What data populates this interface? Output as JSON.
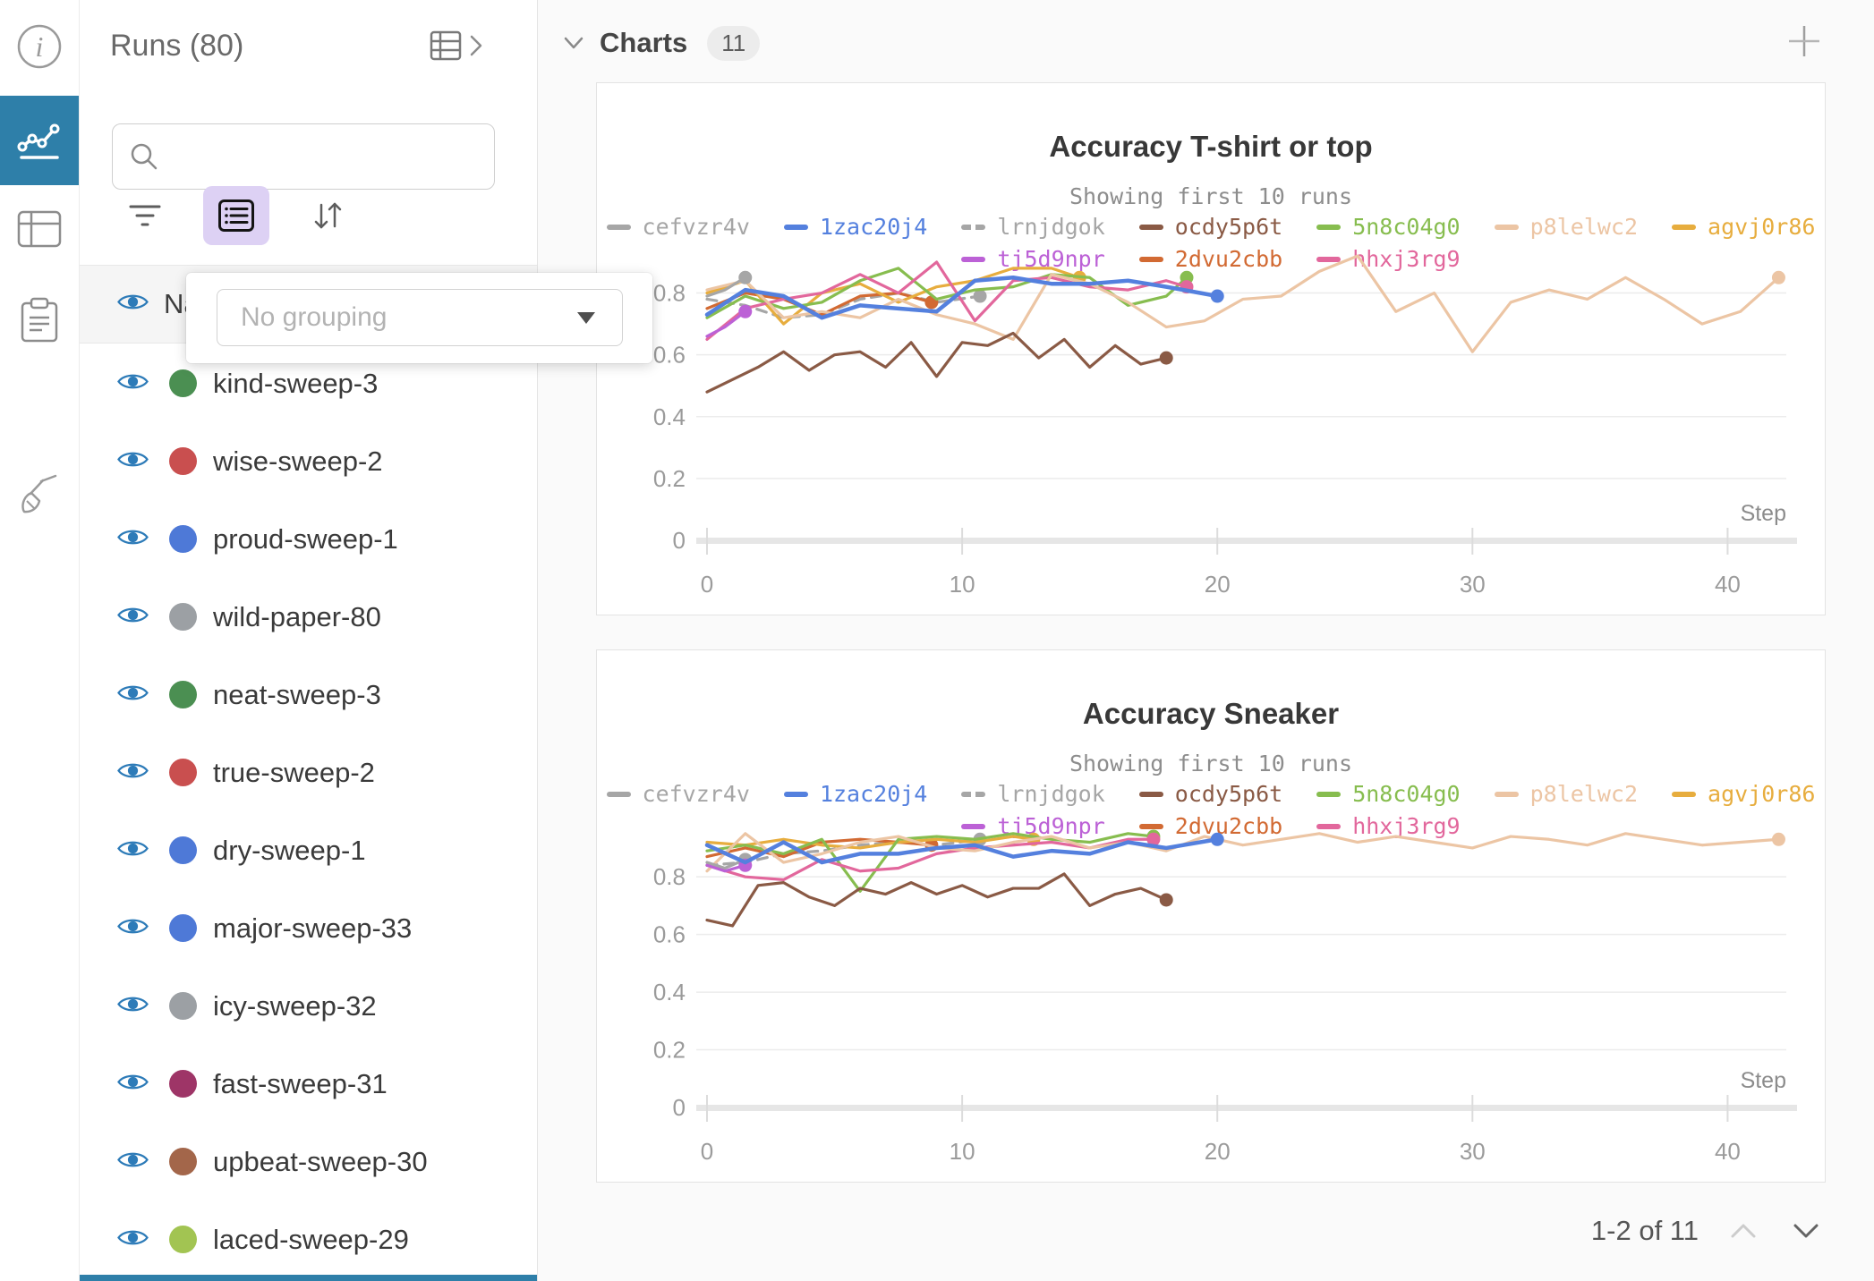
{
  "rail": {
    "items": [
      {
        "icon": "info-icon",
        "active": false
      },
      {
        "icon": "line-chart-icon",
        "active": true
      },
      {
        "icon": "table-icon",
        "active": false
      },
      {
        "icon": "clipboard-icon",
        "active": false
      },
      {
        "icon": "broom-icon",
        "active": false
      }
    ]
  },
  "sidebar": {
    "title": "Runs (80)",
    "search": {
      "placeholder": "",
      "value": ""
    },
    "grouping_popup": {
      "placeholder": "No grouping"
    },
    "header_row": {
      "label": "Name"
    },
    "runs": [
      {
        "name": "kind-sweep-3",
        "color": "#4b8f52",
        "visible": true
      },
      {
        "name": "wise-sweep-2",
        "color": "#c94f4f",
        "visible": true
      },
      {
        "name": "proud-sweep-1",
        "color": "#4e79d7",
        "visible": true
      },
      {
        "name": "wild-paper-80",
        "color": "#9ca0a4",
        "visible": true
      },
      {
        "name": "neat-sweep-3",
        "color": "#4b8f52",
        "visible": true
      },
      {
        "name": "true-sweep-2",
        "color": "#c94f4f",
        "visible": true
      },
      {
        "name": "dry-sweep-1",
        "color": "#4e79d7",
        "visible": true
      },
      {
        "name": "major-sweep-33",
        "color": "#4e79d7",
        "visible": true
      },
      {
        "name": "icy-sweep-32",
        "color": "#9ca0a4",
        "visible": true
      },
      {
        "name": "fast-sweep-31",
        "color": "#9e3567",
        "visible": true
      },
      {
        "name": "upbeat-sweep-30",
        "color": "#a3664a",
        "visible": true
      },
      {
        "name": "laced-sweep-29",
        "color": "#a2c452",
        "visible": true
      }
    ],
    "accent_color": "#2e7fa9",
    "eye_color": "#2d7bb8",
    "group_button_bg": "#ddd1f4"
  },
  "main": {
    "section_title": "Charts",
    "section_count": "11",
    "pagination": {
      "label": "1-2 of 11"
    }
  },
  "chart_data": [
    {
      "type": "line",
      "title": "Accuracy T-shirt or top",
      "subtitle": "Showing first 10 runs",
      "xlabel": "Step",
      "ylabel": "",
      "xlim": [
        0,
        42.3
      ],
      "ylim": [
        0,
        0.9
      ],
      "xticks": [
        0,
        10,
        20,
        30,
        40
      ],
      "yticks": [
        0,
        0.2,
        0.4,
        0.6,
        0.8
      ],
      "grid": true,
      "legend_rows": [
        [
          "cefvzr4v",
          "1zac20j4",
          "lrnjdgok",
          "ocdy5p6t",
          "5n8c04g0",
          "p8lelwc2",
          "agvj0r86"
        ],
        [
          "tj5d9npr",
          "2dvu2cbb",
          "hhxj3rg9"
        ]
      ],
      "series": [
        {
          "name": "lrnjdgok",
          "color": "#a6a6a6",
          "dashed": true,
          "x": [
            0,
            1.5,
            3,
            4.5,
            6,
            7.5,
            9,
            10.7
          ],
          "y": [
            0.78,
            0.76,
            0.72,
            0.73,
            0.78,
            0.8,
            0.77,
            0.79
          ]
        },
        {
          "name": "2dvu2cbb",
          "color": "#d26a33",
          "dashed": false,
          "x": [
            0,
            1.5,
            3,
            4.5,
            6,
            7.5,
            8.8
          ],
          "y": [
            0.75,
            0.8,
            0.78,
            0.73,
            0.79,
            0.8,
            0.77
          ]
        },
        {
          "name": "agvj0r86",
          "color": "#e7ad3e",
          "dashed": false,
          "x": [
            0,
            1.5,
            3,
            4.5,
            6,
            7.5,
            9,
            10.5,
            12,
            13.5,
            14.6
          ],
          "y": [
            0.8,
            0.84,
            0.7,
            0.8,
            0.83,
            0.77,
            0.82,
            0.84,
            0.88,
            0.88,
            0.85
          ]
        },
        {
          "name": "5n8c04g0",
          "color": "#87bd4f",
          "dashed": false,
          "x": [
            0,
            1.5,
            3,
            4.5,
            6,
            7.5,
            9,
            10.5,
            12,
            13.5,
            15,
            16.5,
            18,
            18.8
          ],
          "y": [
            0.72,
            0.79,
            0.75,
            0.77,
            0.84,
            0.88,
            0.78,
            0.81,
            0.82,
            0.86,
            0.85,
            0.76,
            0.79,
            0.85
          ]
        },
        {
          "name": "hhxj3rg9",
          "color": "#e2679c",
          "dashed": false,
          "x": [
            0,
            1.5,
            3,
            4.5,
            6,
            7.5,
            9,
            10.5,
            12,
            13.5,
            15,
            16.5,
            18,
            18.8
          ],
          "y": [
            0.65,
            0.75,
            0.78,
            0.8,
            0.86,
            0.8,
            0.9,
            0.71,
            0.84,
            0.85,
            0.82,
            0.81,
            0.84,
            0.82
          ]
        },
        {
          "name": "p8lelwc2",
          "color": "#ecc5a4",
          "dashed": false,
          "x": [
            0,
            1.5,
            3,
            4.5,
            6,
            7.5,
            9,
            10.5,
            12,
            13.5,
            15,
            16.5,
            18,
            19.5,
            21,
            22.5,
            24,
            25.5,
            27,
            28.5,
            30,
            31.5,
            33,
            34.5,
            36,
            37.5,
            39,
            40.5,
            42
          ],
          "y": [
            0.81,
            0.84,
            0.72,
            0.74,
            0.72,
            0.78,
            0.73,
            0.7,
            0.65,
            0.86,
            0.83,
            0.77,
            0.69,
            0.71,
            0.78,
            0.79,
            0.87,
            0.92,
            0.74,
            0.8,
            0.61,
            0.77,
            0.81,
            0.78,
            0.85,
            0.78,
            0.7,
            0.74,
            0.85
          ]
        },
        {
          "name": "ocdy5p6t",
          "color": "#8a5a45",
          "dashed": false,
          "x": [
            0,
            1,
            2,
            3,
            4,
            5,
            6,
            7,
            8,
            9,
            10,
            11,
            12,
            13,
            14,
            15,
            16,
            17,
            18
          ],
          "y": [
            0.48,
            0.52,
            0.56,
            0.61,
            0.55,
            0.6,
            0.61,
            0.56,
            0.64,
            0.53,
            0.64,
            0.63,
            0.67,
            0.59,
            0.65,
            0.56,
            0.63,
            0.57,
            0.59
          ]
        },
        {
          "name": "cefvzr4v",
          "color": "#a6a6a6",
          "dashed": false,
          "x": [
            0,
            0.7,
            1.5
          ],
          "y": [
            0.79,
            0.81,
            0.85
          ]
        },
        {
          "name": "tj5d9npr",
          "color": "#bc61d6",
          "dashed": false,
          "x": [
            0,
            0.7,
            1.5
          ],
          "y": [
            0.66,
            0.69,
            0.74
          ]
        },
        {
          "name": "1zac20j4",
          "color": "#5480de",
          "dashed": false,
          "emph": true,
          "x": [
            0,
            1.5,
            3,
            4.5,
            6,
            7.5,
            9,
            10.5,
            12,
            13.5,
            15,
            16.5,
            18,
            20
          ],
          "y": [
            0.73,
            0.81,
            0.79,
            0.72,
            0.76,
            0.75,
            0.74,
            0.84,
            0.85,
            0.83,
            0.83,
            0.84,
            0.82,
            0.79
          ]
        }
      ]
    },
    {
      "type": "line",
      "title": "Accuracy Sneaker",
      "subtitle": "Showing first 10 runs",
      "xlabel": "Step",
      "ylabel": "",
      "xlim": [
        0,
        42.3
      ],
      "ylim": [
        0,
        0.965
      ],
      "xticks": [
        0,
        10,
        20,
        30,
        40
      ],
      "yticks": [
        0,
        0.2,
        0.4,
        0.6,
        0.8
      ],
      "grid": true,
      "legend_rows": [
        [
          "cefvzr4v",
          "1zac20j4",
          "lrnjdgok",
          "ocdy5p6t",
          "5n8c04g0",
          "p8lelwc2",
          "agvj0r86"
        ],
        [
          "tj5d9npr",
          "2dvu2cbb",
          "hhxj3rg9"
        ]
      ],
      "series": [
        {
          "name": "lrnjdgok",
          "color": "#a6a6a6",
          "dashed": true,
          "x": [
            0,
            1.5,
            3,
            4.5,
            6,
            7.5,
            9,
            10.7
          ],
          "y": [
            0.84,
            0.85,
            0.88,
            0.89,
            0.91,
            0.92,
            0.91,
            0.93
          ]
        },
        {
          "name": "2dvu2cbb",
          "color": "#d26a33",
          "dashed": false,
          "x": [
            0,
            1.5,
            3,
            4.5,
            6,
            7.5,
            8.8
          ],
          "y": [
            0.87,
            0.9,
            0.87,
            0.92,
            0.93,
            0.92,
            0.91
          ]
        },
        {
          "name": "agvj0r86",
          "color": "#e7ad3e",
          "dashed": false,
          "x": [
            0,
            1.5,
            3,
            4.5,
            6,
            7.5,
            9,
            10.5,
            12,
            12.8
          ],
          "y": [
            0.92,
            0.91,
            0.93,
            0.91,
            0.9,
            0.92,
            0.93,
            0.92,
            0.94,
            0.93
          ]
        },
        {
          "name": "5n8c04g0",
          "color": "#87bd4f",
          "dashed": false,
          "x": [
            0,
            1.5,
            3,
            4.5,
            6,
            7.5,
            9,
            10.5,
            12,
            13.5,
            15,
            16.5,
            17.5
          ],
          "y": [
            0.89,
            0.91,
            0.88,
            0.93,
            0.75,
            0.93,
            0.94,
            0.93,
            0.95,
            0.93,
            0.92,
            0.95,
            0.94
          ]
        },
        {
          "name": "hhxj3rg9",
          "color": "#e2679c",
          "dashed": false,
          "x": [
            0,
            1.5,
            3,
            4.5,
            6,
            7.5,
            9,
            10.5,
            12,
            13.5,
            15,
            16.5,
            17.5
          ],
          "y": [
            0.84,
            0.8,
            0.79,
            0.86,
            0.82,
            0.83,
            0.88,
            0.9,
            0.91,
            0.92,
            0.9,
            0.93,
            0.93
          ]
        },
        {
          "name": "p8lelwc2",
          "color": "#ecc5a4",
          "dashed": false,
          "x": [
            0,
            1.5,
            3,
            4.5,
            6,
            7.5,
            9,
            10.5,
            12,
            13.5,
            15,
            16.5,
            18,
            19.5,
            21,
            22.5,
            24,
            25.5,
            27,
            28.5,
            30,
            31.5,
            33,
            34.5,
            36,
            37.5,
            39,
            40.5,
            42
          ],
          "y": [
            0.82,
            0.95,
            0.85,
            0.88,
            0.92,
            0.94,
            0.9,
            0.89,
            0.92,
            0.94,
            0.9,
            0.92,
            0.89,
            0.94,
            0.91,
            0.93,
            0.95,
            0.92,
            0.94,
            0.92,
            0.9,
            0.94,
            0.93,
            0.91,
            0.95,
            0.93,
            0.91,
            0.92,
            0.93
          ]
        },
        {
          "name": "ocdy5p6t",
          "color": "#8a5a45",
          "dashed": false,
          "x": [
            0,
            1,
            2,
            3,
            4,
            5,
            6,
            7,
            8,
            9,
            10,
            11,
            12,
            13,
            14,
            15,
            16,
            17,
            18
          ],
          "y": [
            0.65,
            0.63,
            0.77,
            0.78,
            0.73,
            0.7,
            0.76,
            0.74,
            0.78,
            0.74,
            0.77,
            0.73,
            0.76,
            0.76,
            0.81,
            0.7,
            0.74,
            0.76,
            0.72
          ]
        },
        {
          "name": "cefvzr4v",
          "color": "#a6a6a6",
          "dashed": false,
          "x": [
            0,
            0.7,
            1.5
          ],
          "y": [
            0.85,
            0.83,
            0.86
          ]
        },
        {
          "name": "tj5d9npr",
          "color": "#bc61d6",
          "dashed": false,
          "x": [
            0,
            0.7,
            1.5
          ],
          "y": [
            0.84,
            0.82,
            0.84
          ]
        },
        {
          "name": "1zac20j4",
          "color": "#5480de",
          "dashed": false,
          "emph": true,
          "x": [
            0,
            1.5,
            3,
            4.5,
            6,
            7.5,
            9,
            10.5,
            12,
            13.5,
            15,
            16.5,
            18,
            20
          ],
          "y": [
            0.91,
            0.85,
            0.92,
            0.85,
            0.88,
            0.88,
            0.9,
            0.91,
            0.87,
            0.89,
            0.88,
            0.92,
            0.9,
            0.93
          ]
        }
      ]
    }
  ]
}
